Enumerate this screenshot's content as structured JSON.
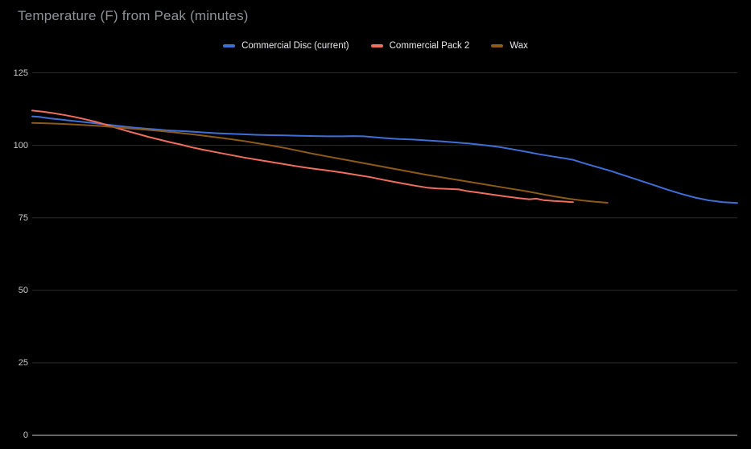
{
  "page": {
    "background": "#000000"
  },
  "chart_data": {
    "type": "line",
    "title": "Temperature (F) from Peak (minutes)",
    "xlabel": "",
    "ylabel": "",
    "ylim": [
      0,
      125
    ],
    "yticks": [
      0,
      25,
      50,
      75,
      100,
      125
    ],
    "x_axis_tick_labels": [],
    "x_encoding": "fraction of plot width; x axis has no visible tick labels",
    "grid": true,
    "legend_position": "top-center",
    "colors": {
      "background": "#000000",
      "title_text": "#8e9297",
      "grid_line": "#2d2d2d",
      "zero_axis_line": "#646464",
      "tick_label_text": "#c9c9c9",
      "legend_text": "#e8eaed"
    },
    "series": [
      {
        "name": "Commercial Disc (current)",
        "color": "#3e6fd6",
        "points": [
          [
            0.0,
            110.0
          ],
          [
            0.01,
            109.8
          ],
          [
            0.025,
            109.3
          ],
          [
            0.04,
            108.9
          ],
          [
            0.055,
            108.5
          ],
          [
            0.07,
            108.1
          ],
          [
            0.085,
            107.7
          ],
          [
            0.1,
            107.3
          ],
          [
            0.115,
            106.9
          ],
          [
            0.13,
            106.5
          ],
          [
            0.145,
            106.1
          ],
          [
            0.16,
            105.8
          ],
          [
            0.175,
            105.5
          ],
          [
            0.19,
            105.2
          ],
          [
            0.205,
            105.0
          ],
          [
            0.22,
            104.8
          ],
          [
            0.24,
            104.5
          ],
          [
            0.26,
            104.2
          ],
          [
            0.28,
            104.0
          ],
          [
            0.3,
            103.8
          ],
          [
            0.32,
            103.6
          ],
          [
            0.34,
            103.5
          ],
          [
            0.36,
            103.4
          ],
          [
            0.38,
            103.3
          ],
          [
            0.4,
            103.2
          ],
          [
            0.42,
            103.1
          ],
          [
            0.44,
            103.1
          ],
          [
            0.455,
            103.2
          ],
          [
            0.47,
            103.1
          ],
          [
            0.485,
            102.8
          ],
          [
            0.5,
            102.5
          ],
          [
            0.52,
            102.2
          ],
          [
            0.54,
            102.0
          ],
          [
            0.56,
            101.7
          ],
          [
            0.58,
            101.4
          ],
          [
            0.6,
            101.0
          ],
          [
            0.62,
            100.6
          ],
          [
            0.64,
            100.1
          ],
          [
            0.66,
            99.5
          ],
          [
            0.68,
            98.7
          ],
          [
            0.7,
            97.8
          ],
          [
            0.72,
            96.9
          ],
          [
            0.74,
            96.1
          ],
          [
            0.755,
            95.5
          ],
          [
            0.767,
            95.0
          ],
          [
            0.78,
            94.0
          ],
          [
            0.8,
            92.6
          ],
          [
            0.82,
            91.2
          ],
          [
            0.84,
            89.6
          ],
          [
            0.86,
            88.0
          ],
          [
            0.88,
            86.4
          ],
          [
            0.9,
            84.8
          ],
          [
            0.92,
            83.3
          ],
          [
            0.94,
            82.0
          ],
          [
            0.96,
            81.0
          ],
          [
            0.98,
            80.4
          ],
          [
            1.0,
            80.1
          ]
        ]
      },
      {
        "name": "Commercial Pack 2",
        "color": "#ef6e5e",
        "points": [
          [
            0.0,
            112.0
          ],
          [
            0.015,
            111.6
          ],
          [
            0.03,
            111.1
          ],
          [
            0.045,
            110.5
          ],
          [
            0.06,
            109.8
          ],
          [
            0.075,
            109.0
          ],
          [
            0.09,
            108.1
          ],
          [
            0.105,
            107.1
          ],
          [
            0.12,
            106.0
          ],
          [
            0.135,
            104.9
          ],
          [
            0.15,
            103.9
          ],
          [
            0.165,
            102.9
          ],
          [
            0.18,
            102.0
          ],
          [
            0.195,
            101.1
          ],
          [
            0.21,
            100.3
          ],
          [
            0.225,
            99.4
          ],
          [
            0.24,
            98.6
          ],
          [
            0.255,
            97.9
          ],
          [
            0.27,
            97.2
          ],
          [
            0.285,
            96.5
          ],
          [
            0.3,
            95.8
          ],
          [
            0.32,
            95.0
          ],
          [
            0.34,
            94.2
          ],
          [
            0.36,
            93.4
          ],
          [
            0.38,
            92.6
          ],
          [
            0.4,
            91.9
          ],
          [
            0.42,
            91.3
          ],
          [
            0.44,
            90.6
          ],
          [
            0.46,
            89.8
          ],
          [
            0.48,
            89.0
          ],
          [
            0.5,
            88.0
          ],
          [
            0.52,
            87.1
          ],
          [
            0.54,
            86.2
          ],
          [
            0.56,
            85.4
          ],
          [
            0.575,
            85.1
          ],
          [
            0.59,
            85.0
          ],
          [
            0.605,
            84.8
          ],
          [
            0.615,
            84.3
          ],
          [
            0.63,
            83.8
          ],
          [
            0.65,
            83.1
          ],
          [
            0.67,
            82.4
          ],
          [
            0.69,
            81.8
          ],
          [
            0.705,
            81.4
          ],
          [
            0.715,
            81.6
          ],
          [
            0.725,
            81.1
          ],
          [
            0.74,
            80.8
          ],
          [
            0.755,
            80.6
          ],
          [
            0.767,
            80.4
          ]
        ]
      },
      {
        "name": "Wax",
        "color": "#8d5a18",
        "points": [
          [
            0.0,
            107.7
          ],
          [
            0.02,
            107.6
          ],
          [
            0.04,
            107.4
          ],
          [
            0.06,
            107.2
          ],
          [
            0.08,
            106.9
          ],
          [
            0.1,
            106.6
          ],
          [
            0.12,
            106.2
          ],
          [
            0.14,
            105.8
          ],
          [
            0.16,
            105.4
          ],
          [
            0.18,
            105.0
          ],
          [
            0.2,
            104.5
          ],
          [
            0.22,
            104.0
          ],
          [
            0.24,
            103.4
          ],
          [
            0.26,
            102.8
          ],
          [
            0.28,
            102.2
          ],
          [
            0.3,
            101.5
          ],
          [
            0.32,
            100.7
          ],
          [
            0.34,
            99.9
          ],
          [
            0.36,
            99.0
          ],
          [
            0.38,
            98.0
          ],
          [
            0.4,
            97.0
          ],
          [
            0.42,
            96.1
          ],
          [
            0.44,
            95.2
          ],
          [
            0.46,
            94.3
          ],
          [
            0.48,
            93.4
          ],
          [
            0.5,
            92.5
          ],
          [
            0.52,
            91.6
          ],
          [
            0.54,
            90.7
          ],
          [
            0.56,
            89.8
          ],
          [
            0.58,
            89.0
          ],
          [
            0.6,
            88.2
          ],
          [
            0.62,
            87.4
          ],
          [
            0.64,
            86.6
          ],
          [
            0.66,
            85.8
          ],
          [
            0.68,
            85.0
          ],
          [
            0.7,
            84.2
          ],
          [
            0.72,
            83.3
          ],
          [
            0.74,
            82.4
          ],
          [
            0.76,
            81.6
          ],
          [
            0.78,
            81.0
          ],
          [
            0.8,
            80.5
          ],
          [
            0.816,
            80.2
          ]
        ]
      }
    ]
  }
}
